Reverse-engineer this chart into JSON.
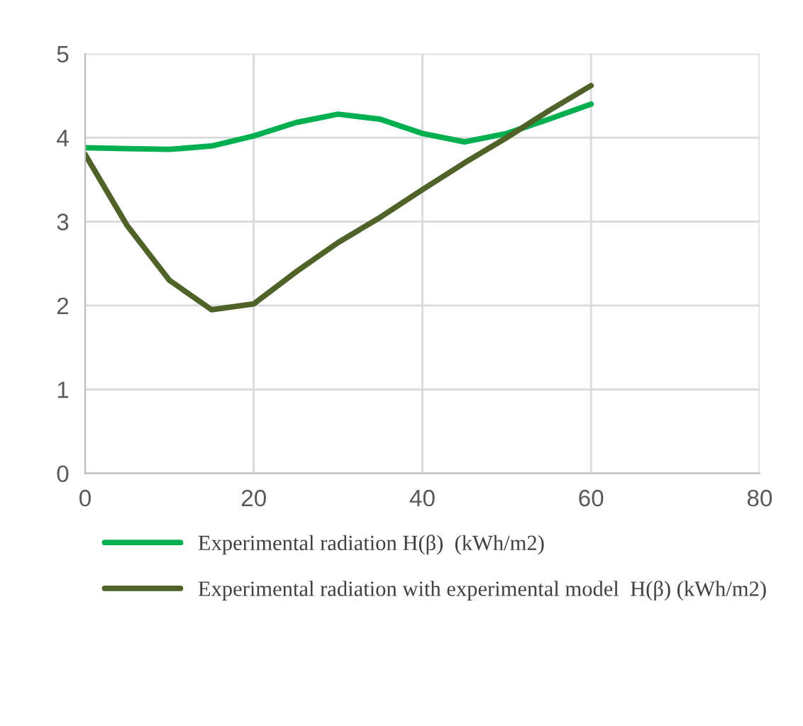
{
  "chart_data": {
    "type": "line",
    "x": [
      0,
      5,
      10,
      15,
      20,
      25,
      30,
      35,
      40,
      45,
      50,
      55,
      60
    ],
    "series": [
      {
        "name": "Experimental radiation H(β)  (kWh/m2)",
        "color": "#00b050",
        "values": [
          3.88,
          3.87,
          3.86,
          3.9,
          4.02,
          4.18,
          4.28,
          4.22,
          4.05,
          3.95,
          4.05,
          4.22,
          4.4
        ]
      },
      {
        "name": "Experimental radiation with experimental model  H(β) (kWh/m2)",
        "color": "#4f6228",
        "values": [
          3.8,
          2.95,
          2.3,
          1.95,
          2.02,
          2.4,
          2.75,
          3.05,
          3.38,
          3.7,
          4.0,
          4.32,
          4.62
        ]
      }
    ],
    "xlim": [
      0,
      80
    ],
    "xticks": [
      0,
      20,
      40,
      60,
      80
    ],
    "ylim": [
      0,
      5
    ],
    "yticks": [
      0,
      1,
      2,
      3,
      4,
      5
    ],
    "grid": true,
    "legend": "bottom",
    "marker": "none",
    "line_style": "solid"
  }
}
